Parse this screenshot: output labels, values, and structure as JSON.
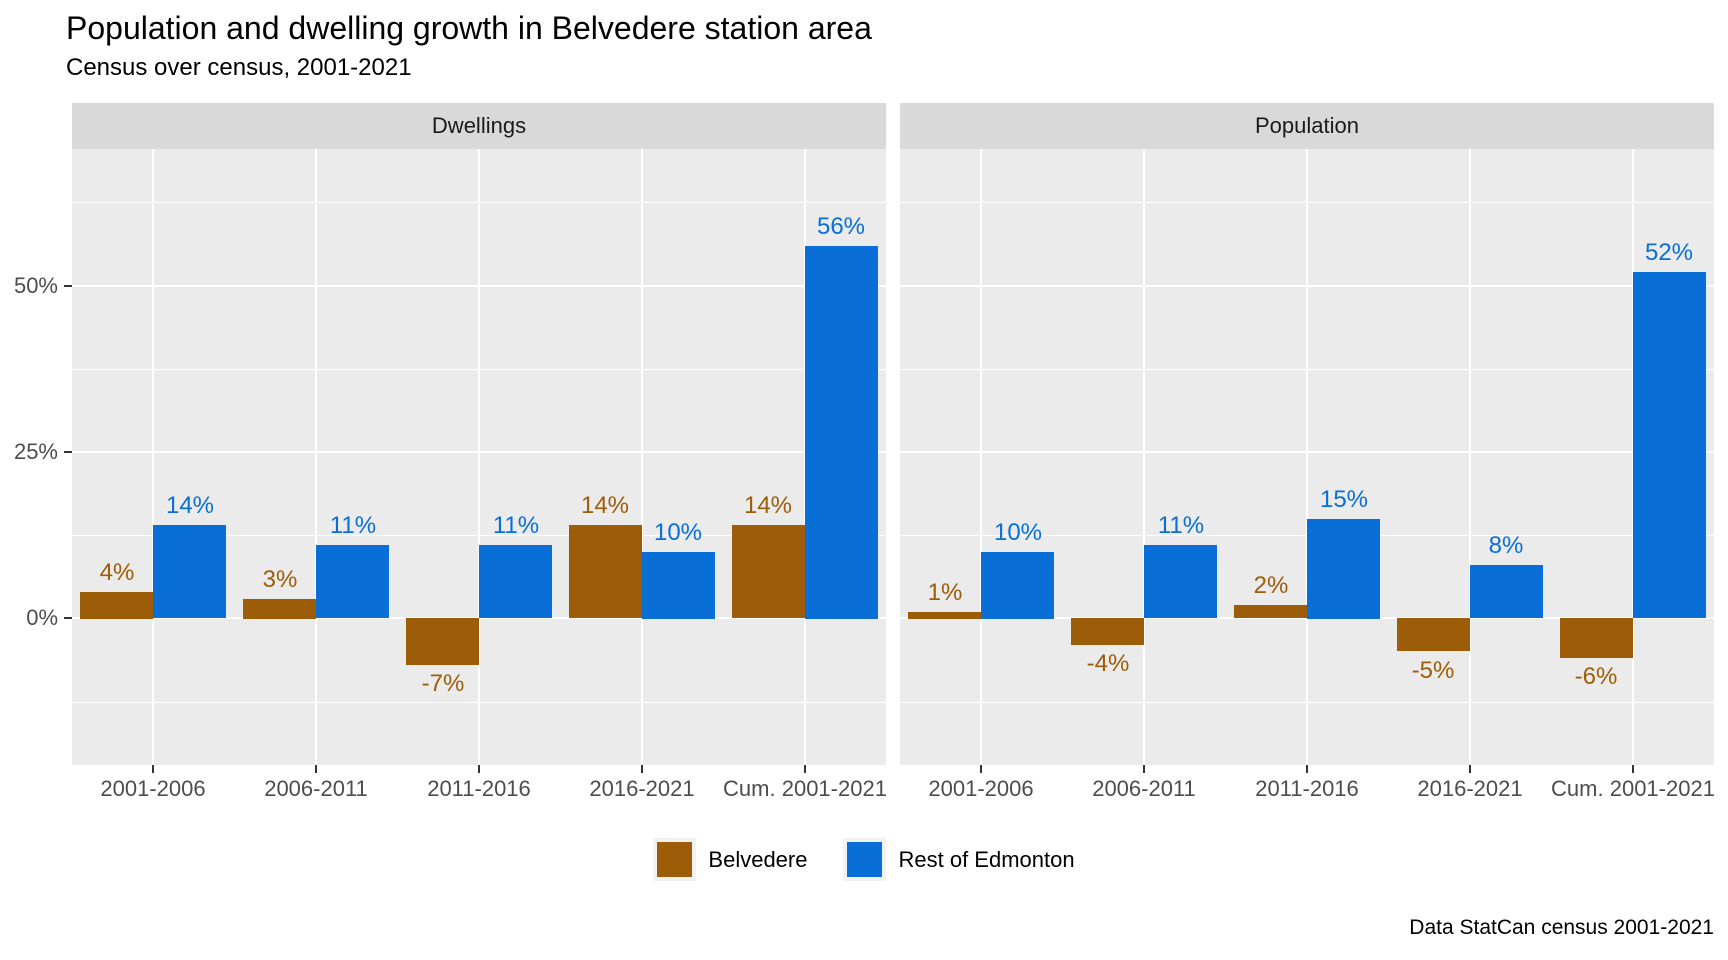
{
  "chart_data": {
    "type": "bar",
    "title": "Population and dwelling growth in Belvedere station area",
    "subtitle": "Census over census, 2001-2021",
    "caption": "Data StatCan census 2001-2021",
    "categories": [
      "2001-2006",
      "2006-2011",
      "2011-2016",
      "2016-2021",
      "Cum. 2001-2021"
    ],
    "facets": [
      {
        "label": "Dwellings",
        "series": [
          {
            "name": "Belvedere",
            "color": "#9D5C07",
            "values": [
              4,
              3,
              -7,
              14,
              14
            ],
            "labels": [
              "4%",
              "3%",
              "-7%",
              "14%",
              "14%"
            ]
          },
          {
            "name": "Rest of Edmonton",
            "color": "#0A6ED7",
            "values": [
              14,
              11,
              11,
              10,
              56
            ],
            "labels": [
              "14%",
              "11%",
              "11%",
              "10%",
              "56%"
            ]
          }
        ]
      },
      {
        "label": "Population",
        "series": [
          {
            "name": "Belvedere",
            "color": "#9D5C07",
            "values": [
              1,
              -4,
              2,
              -5,
              -6
            ],
            "labels": [
              "1%",
              "-4%",
              "2%",
              "-5%",
              "-6%"
            ]
          },
          {
            "name": "Rest of Edmonton",
            "color": "#0A6ED7",
            "values": [
              10,
              11,
              15,
              8,
              52
            ],
            "labels": [
              "10%",
              "11%",
              "15%",
              "8%",
              "52%"
            ]
          }
        ]
      }
    ],
    "y_axis": {
      "ticks": [
        0,
        25,
        50
      ],
      "tick_labels": [
        "0%",
        "25%",
        "50%"
      ],
      "minor_ticks": [
        -12.5,
        12.5,
        37.5,
        62.5
      ],
      "ylim": [
        -22,
        70.5
      ]
    },
    "legend": {
      "position": "bottom",
      "entries": [
        {
          "label": "Belvedere",
          "color": "#9D5C07"
        },
        {
          "label": "Rest of Edmonton",
          "color": "#0A6ED7"
        }
      ]
    },
    "style": {
      "panel_bg": "#EBEBEB",
      "strip_bg": "#D9D9D9",
      "grid_color": "#FFFFFF",
      "axis_text_color": "#4D4D4D",
      "tick_color": "#333333"
    }
  }
}
